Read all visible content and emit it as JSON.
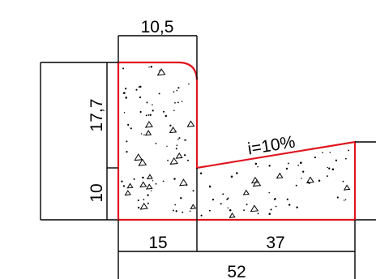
{
  "drawing": {
    "dimensions": {
      "top_width": "10,5",
      "upper_height": "17,7",
      "lower_height": "10",
      "base_left": "15",
      "base_right": "37",
      "base_total": "52"
    },
    "slope_label": "i=10%",
    "colors": {
      "outline": "#e0141e",
      "lines": "#000000"
    }
  }
}
